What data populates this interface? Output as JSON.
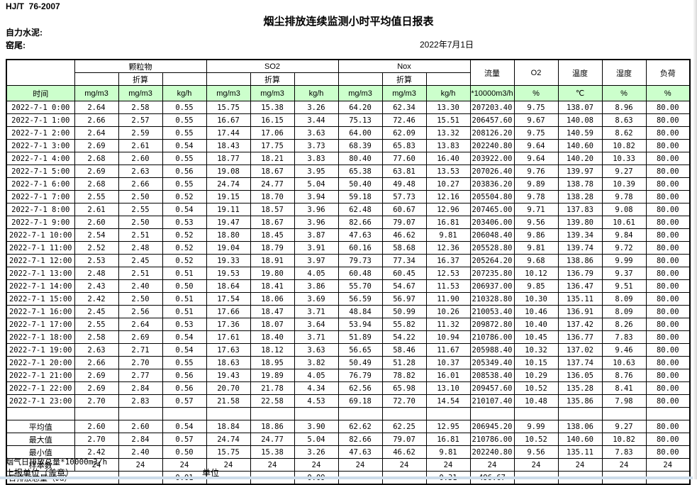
{
  "page": {
    "standard": "HJ/T  76-2007",
    "title": "烟尘排放连续监测小时平均值日报表",
    "company": "自力水泥:",
    "site": "窑尾:",
    "date": "2022年7月1日"
  },
  "colors": {
    "header_green": "#ccffcc",
    "bottom_strip": "#ccdcea"
  },
  "table": {
    "time_header": "时间",
    "groups": [
      {
        "label": "颗粒物",
        "sub": "折算"
      },
      {
        "label": "SO2",
        "sub": "折算"
      },
      {
        "label": "Nox",
        "sub": "折算"
      }
    ],
    "singles": [
      "流量",
      "O2",
      "温度",
      "湿度",
      "负荷"
    ],
    "units_row": [
      "时间",
      "mg/m3",
      "mg/m3",
      "kg/h",
      "mg/m3",
      "mg/m3",
      "kg/h",
      "mg/m3",
      "mg/m3",
      "kg/h",
      "*10000m3/h",
      "%",
      "℃",
      "%",
      "%"
    ],
    "rows": [
      [
        "2022-7-1 0:00",
        "2.64",
        "2.58",
        "0.55",
        "15.75",
        "15.38",
        "3.26",
        "64.20",
        "62.34",
        "13.30",
        "207203.40",
        "9.75",
        "138.07",
        "8.96",
        "80.00"
      ],
      [
        "2022-7-1 1:00",
        "2.66",
        "2.57",
        "0.55",
        "16.67",
        "16.15",
        "3.44",
        "75.13",
        "72.46",
        "15.51",
        "206457.60",
        "9.67",
        "140.08",
        "8.63",
        "80.00"
      ],
      [
        "2022-7-1 2:00",
        "2.64",
        "2.59",
        "0.55",
        "17.44",
        "17.06",
        "3.63",
        "64.00",
        "62.09",
        "13.32",
        "208126.20",
        "9.75",
        "140.59",
        "8.62",
        "80.00"
      ],
      [
        "2022-7-1 3:00",
        "2.69",
        "2.61",
        "0.54",
        "18.43",
        "17.75",
        "3.73",
        "68.39",
        "65.83",
        "13.83",
        "202240.80",
        "9.64",
        "140.60",
        "10.82",
        "80.00"
      ],
      [
        "2022-7-1 4:00",
        "2.68",
        "2.60",
        "0.55",
        "18.77",
        "18.21",
        "3.83",
        "80.40",
        "77.60",
        "16.40",
        "203922.00",
        "9.64",
        "140.20",
        "10.33",
        "80.00"
      ],
      [
        "2022-7-1 5:00",
        "2.69",
        "2.63",
        "0.56",
        "19.08",
        "18.67",
        "3.95",
        "65.38",
        "63.81",
        "13.53",
        "207026.40",
        "9.76",
        "139.97",
        "9.27",
        "80.00"
      ],
      [
        "2022-7-1 6:00",
        "2.68",
        "2.66",
        "0.55",
        "24.74",
        "24.77",
        "5.04",
        "50.40",
        "49.48",
        "10.27",
        "203836.20",
        "9.89",
        "138.78",
        "10.39",
        "80.00"
      ],
      [
        "2022-7-1 7:00",
        "2.55",
        "2.50",
        "0.52",
        "19.15",
        "18.70",
        "3.94",
        "59.18",
        "57.73",
        "12.16",
        "205504.80",
        "9.78",
        "138.28",
        "9.78",
        "80.00"
      ],
      [
        "2022-7-1 8:00",
        "2.61",
        "2.55",
        "0.54",
        "19.11",
        "18.57",
        "3.96",
        "62.48",
        "60.67",
        "12.96",
        "207465.00",
        "9.71",
        "137.83",
        "9.08",
        "80.00"
      ],
      [
        "2022-7-1 9:00",
        "2.60",
        "2.50",
        "0.53",
        "19.47",
        "18.67",
        "3.96",
        "82.66",
        "79.07",
        "16.81",
        "203406.00",
        "9.56",
        "139.80",
        "10.61",
        "80.00"
      ],
      [
        "2022-7-1 10:00",
        "2.54",
        "2.51",
        "0.52",
        "18.80",
        "18.45",
        "3.87",
        "47.63",
        "46.62",
        "9.81",
        "206048.40",
        "9.86",
        "139.34",
        "9.84",
        "80.00"
      ],
      [
        "2022-7-1 11:00",
        "2.52",
        "2.48",
        "0.52",
        "19.04",
        "18.79",
        "3.91",
        "60.16",
        "58.68",
        "12.36",
        "205528.80",
        "9.81",
        "139.74",
        "9.72",
        "80.00"
      ],
      [
        "2022-7-1 12:00",
        "2.53",
        "2.45",
        "0.52",
        "19.33",
        "18.91",
        "3.97",
        "79.73",
        "77.34",
        "16.37",
        "205264.20",
        "9.68",
        "138.86",
        "9.99",
        "80.00"
      ],
      [
        "2022-7-1 13:00",
        "2.48",
        "2.51",
        "0.51",
        "19.53",
        "19.80",
        "4.05",
        "60.48",
        "60.45",
        "12.53",
        "207235.80",
        "10.12",
        "136.79",
        "9.37",
        "80.00"
      ],
      [
        "2022-7-1 14:00",
        "2.43",
        "2.40",
        "0.50",
        "18.64",
        "18.41",
        "3.86",
        "55.70",
        "54.67",
        "11.53",
        "206937.00",
        "9.85",
        "136.47",
        "9.51",
        "80.00"
      ],
      [
        "2022-7-1 15:00",
        "2.42",
        "2.50",
        "0.51",
        "17.54",
        "18.06",
        "3.69",
        "56.59",
        "56.97",
        "11.90",
        "210328.80",
        "10.30",
        "135.11",
        "8.09",
        "80.00"
      ],
      [
        "2022-7-1 16:00",
        "2.45",
        "2.56",
        "0.51",
        "17.66",
        "18.47",
        "3.71",
        "48.84",
        "50.99",
        "10.26",
        "210053.40",
        "10.46",
        "136.91",
        "8.09",
        "80.00"
      ],
      [
        "2022-7-1 17:00",
        "2.55",
        "2.64",
        "0.53",
        "17.36",
        "18.07",
        "3.64",
        "53.94",
        "55.82",
        "11.32",
        "209872.80",
        "10.40",
        "137.42",
        "8.26",
        "80.00"
      ],
      [
        "2022-7-1 18:00",
        "2.58",
        "2.69",
        "0.54",
        "17.61",
        "18.40",
        "3.71",
        "51.89",
        "54.22",
        "10.94",
        "210786.00",
        "10.45",
        "136.77",
        "7.83",
        "80.00"
      ],
      [
        "2022-7-1 19:00",
        "2.63",
        "2.71",
        "0.54",
        "17.63",
        "18.12",
        "3.63",
        "56.65",
        "58.46",
        "11.67",
        "205988.40",
        "10.32",
        "137.02",
        "9.46",
        "80.00"
      ],
      [
        "2022-7-1 20:00",
        "2.66",
        "2.70",
        "0.55",
        "18.63",
        "18.95",
        "3.82",
        "50.49",
        "51.28",
        "10.37",
        "205349.40",
        "10.15",
        "137.74",
        "10.63",
        "80.00"
      ],
      [
        "2022-7-1 21:00",
        "2.69",
        "2.77",
        "0.56",
        "19.43",
        "19.89",
        "4.05",
        "76.79",
        "78.82",
        "16.01",
        "208538.40",
        "10.29",
        "136.05",
        "8.76",
        "80.00"
      ],
      [
        "2022-7-1 22:00",
        "2.69",
        "2.84",
        "0.56",
        "20.70",
        "21.78",
        "4.34",
        "62.56",
        "65.98",
        "13.10",
        "209457.60",
        "10.52",
        "135.28",
        "8.41",
        "80.00"
      ],
      [
        "2022-7-1 23:00",
        "2.70",
        "2.83",
        "0.57",
        "21.58",
        "22.58",
        "4.53",
        "69.18",
        "72.70",
        "14.54",
        "210107.40",
        "10.48",
        "135.86",
        "7.98",
        "80.00"
      ]
    ],
    "summary": [
      {
        "label": "平均值",
        "values": [
          "2.60",
          "2.60",
          "0.54",
          "18.84",
          "18.86",
          "3.90",
          "62.62",
          "62.25",
          "12.95",
          "206945.20",
          "9.99",
          "138.06",
          "9.27",
          "80.00"
        ]
      },
      {
        "label": "最大值",
        "values": [
          "2.70",
          "2.84",
          "0.57",
          "24.74",
          "24.77",
          "5.04",
          "82.66",
          "79.07",
          "16.81",
          "210786.00",
          "10.52",
          "140.60",
          "10.82",
          "80.00"
        ]
      },
      {
        "label": "最小值",
        "values": [
          "2.42",
          "2.40",
          "0.50",
          "15.75",
          "15.38",
          "3.26",
          "47.63",
          "46.62",
          "9.81",
          "202240.80",
          "9.56",
          "135.11",
          "7.83",
          "80.00"
        ]
      },
      {
        "label": "样本数",
        "values": [
          "24",
          "24",
          "24",
          "24",
          "24",
          "24",
          "24",
          "24",
          "24",
          "24",
          "24",
          "24",
          "24",
          "24"
        ]
      }
    ],
    "daily_total": {
      "label": "日排放总量（t/d）",
      "values": [
        "",
        "0.01",
        "",
        "",
        "0.09",
        "",
        "",
        "0.31",
        "496.67",
        "",
        "",
        "",
        ""
      ]
    }
  },
  "footer": {
    "flow_note": "烟气日排放总量*10000m3/h",
    "report_unit": "上报单位（盖章）",
    "unit": "单位"
  }
}
